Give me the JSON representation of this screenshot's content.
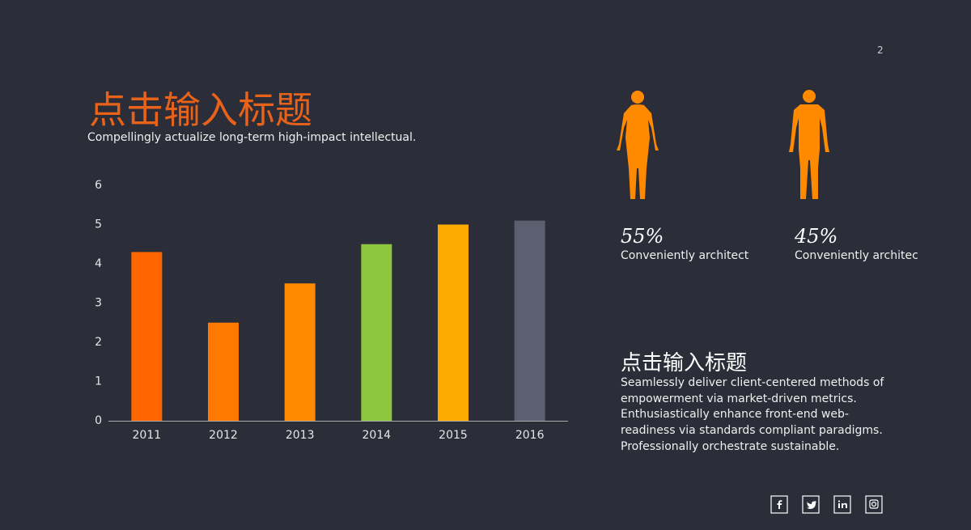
{
  "page_number": "2",
  "header": {
    "title": "点击输入标题",
    "subtitle": "Compellingly actualize long-term high-impact intellectual."
  },
  "chart_data": {
    "type": "bar",
    "categories": [
      "2011",
      "2012",
      "2013",
      "2014",
      "2015",
      "2016"
    ],
    "values": [
      4.3,
      2.5,
      3.5,
      4.5,
      5.0,
      5.1
    ],
    "colors": [
      "#ff6600",
      "#ff7800",
      "#ff8a00",
      "#8cc63f",
      "#ffaa00",
      "#5a6070"
    ],
    "ylim": [
      0,
      6
    ],
    "yticks": [
      0,
      1,
      2,
      3,
      4,
      5,
      6
    ],
    "grid": false
  },
  "stats": [
    {
      "value": "55%",
      "label": "Conveniently architect"
    },
    {
      "value": "45%",
      "label": "Conveniently architec"
    }
  ],
  "section": {
    "title": "点击输入标题",
    "lines": [
      "Seamlessly deliver client-centered methods of",
      "empowerment via market-driven metrics.",
      "Enthusiastically enhance front-end web-",
      "readiness via standards compliant paradigms.",
      "Professionally orchestrate sustainable."
    ]
  }
}
